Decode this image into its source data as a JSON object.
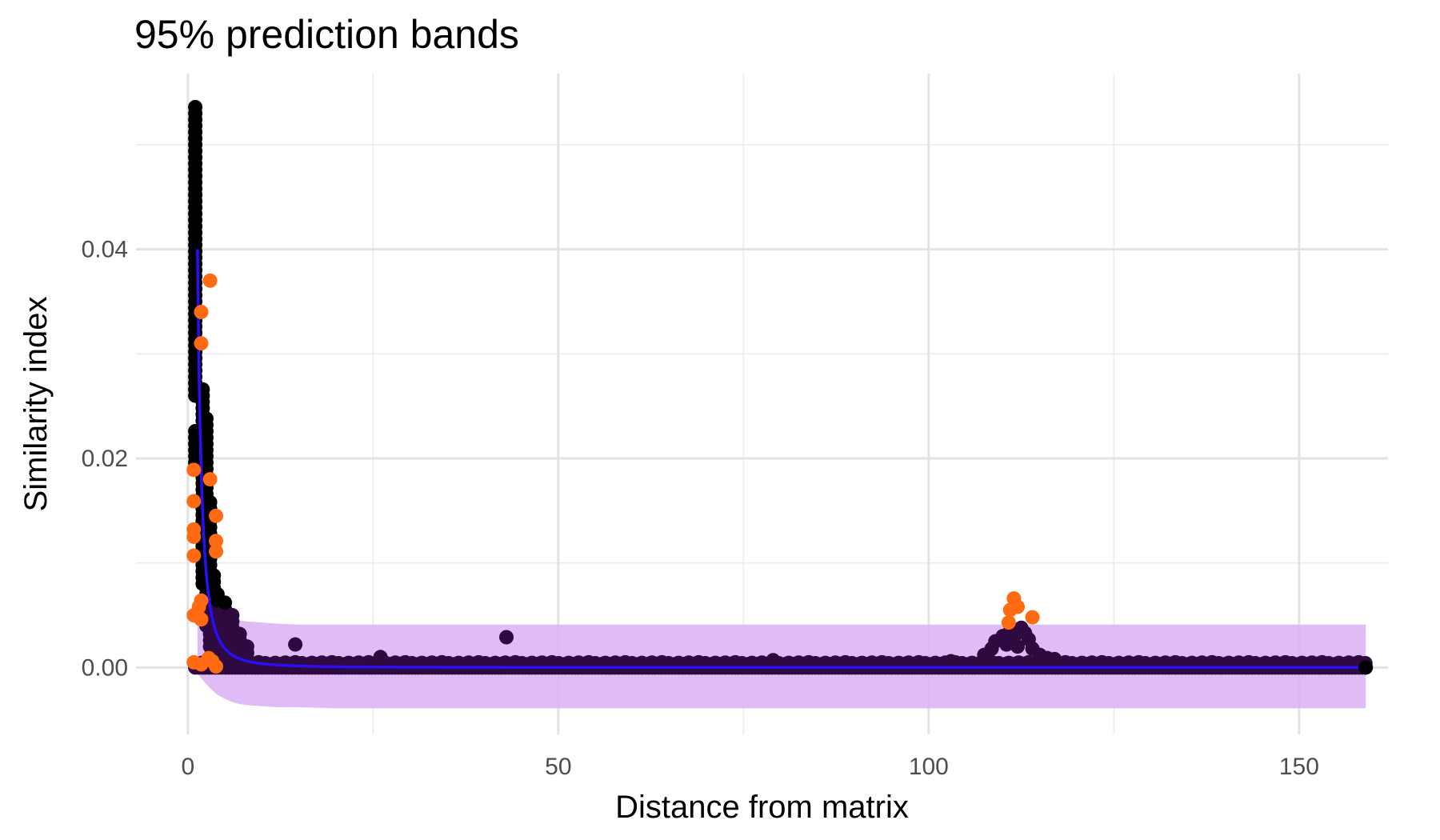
{
  "chart_data": {
    "type": "scatter",
    "title": "95% prediction bands",
    "xlabel": "Distance from matrix",
    "ylabel": "Similarity index",
    "xlim": [
      -7,
      162
    ],
    "ylim": [
      -0.0064,
      0.0568
    ],
    "x_ticks": [
      0,
      50,
      100,
      150
    ],
    "x_tick_labels": [
      "0",
      "50",
      "100",
      "150"
    ],
    "x_minor_ticks": [
      25,
      75,
      125
    ],
    "y_ticks": [
      0.0,
      0.02,
      0.04
    ],
    "y_tick_labels": [
      "0.00",
      "0.02",
      "0.04"
    ],
    "y_minor_ticks": [
      0.01,
      0.03,
      0.05
    ],
    "grid": true,
    "legend": "none",
    "colors": {
      "observed_high": "#000000",
      "observed_low": "#2e0a40",
      "outlier": "#ff6a13",
      "fit_line": "#2a0ff5",
      "band": "#dab0f5"
    },
    "fit": {
      "type": "decay",
      "a": 0.04,
      "x0": 1.3,
      "p": 2.3,
      "xmax": 159
    },
    "band": {
      "x": [
        1.3,
        2,
        3,
        4,
        5,
        6,
        7,
        8,
        10,
        12,
        15,
        20,
        159
      ],
      "lower": [
        -0.0006,
        -0.0012,
        -0.002,
        -0.0026,
        -0.003,
        -0.0033,
        -0.0035,
        -0.0036,
        -0.0037,
        -0.0038,
        -0.0038,
        -0.0039,
        -0.0039
      ],
      "upper": [
        0.0047,
        0.0047,
        0.0047,
        0.0047,
        0.0047,
        0.0046,
        0.0045,
        0.0044,
        0.0043,
        0.0042,
        0.0041,
        0.0041,
        0.0041
      ]
    },
    "series": [
      {
        "role": "observed",
        "clusters": [
          {
            "x": 1,
            "y_from": 0.026,
            "y_to": 0.054,
            "step": 0.0006
          },
          {
            "x": 1,
            "y_from": 0.019,
            "y_to": 0.023,
            "step": 0.0006
          },
          {
            "x": 2,
            "y_from": 0.008,
            "y_to": 0.027,
            "step": 0.0006
          },
          {
            "x": 2.5,
            "y_from": 0.004,
            "y_to": 0.024,
            "step": 0.0006
          },
          {
            "x": 3,
            "y_from": 0.002,
            "y_to": 0.016,
            "step": 0.0006
          },
          {
            "x": 3.5,
            "y_from": 0.001,
            "y_to": 0.009,
            "step": 0.0006
          },
          {
            "x": 4,
            "y_from": 0.001,
            "y_to": 0.007,
            "step": 0.0006
          },
          {
            "x": 5,
            "y_from": 0.0008,
            "y_to": 0.0065,
            "step": 0.0006
          },
          {
            "x": 6,
            "y_from": 0.0008,
            "y_to": 0.005,
            "step": 0.0006
          },
          {
            "x": 7,
            "y_from": 0.0008,
            "y_to": 0.0035,
            "step": 0.0006
          },
          {
            "x": 8,
            "y_from": 0.0008,
            "y_to": 0.0025,
            "step": 0.0006
          }
        ],
        "baseline": {
          "x_from": 1,
          "x_to": 159,
          "step": 0.45,
          "y": 0.0002,
          "spread": 0.0003
        },
        "points": [
          [
            14.5,
            0.0022
          ],
          [
            43,
            0.0029
          ],
          [
            26,
            0.001
          ],
          [
            79,
            0.0007
          ],
          [
            103,
            0.0006
          ],
          [
            107.5,
            0.0012
          ],
          [
            108.5,
            0.0018
          ],
          [
            109,
            0.0025
          ],
          [
            110,
            0.003
          ],
          [
            110.5,
            0.0022
          ],
          [
            111,
            0.0035
          ],
          [
            111.5,
            0.0028
          ],
          [
            112,
            0.002
          ],
          [
            112.5,
            0.0038
          ],
          [
            113,
            0.0033
          ],
          [
            113.5,
            0.0027
          ],
          [
            114,
            0.0018
          ],
          [
            115,
            0.0012
          ],
          [
            116,
            0.0009
          ],
          [
            117,
            0.0008
          ],
          [
            159,
            0.0
          ]
        ]
      },
      {
        "role": "outliers",
        "points": [
          [
            3,
            0.037
          ],
          [
            1.8,
            0.034
          ],
          [
            1.8,
            0.031
          ],
          [
            0.8,
            0.0189
          ],
          [
            3,
            0.018
          ],
          [
            0.8,
            0.0159
          ],
          [
            3.8,
            0.0145
          ],
          [
            0.8,
            0.0132
          ],
          [
            0.8,
            0.0125
          ],
          [
            3.8,
            0.0121
          ],
          [
            3.8,
            0.0111
          ],
          [
            0.8,
            0.0107
          ],
          [
            1.8,
            0.0064
          ],
          [
            1.5,
            0.0058
          ],
          [
            0.8,
            0.005
          ],
          [
            1.5,
            0.0048
          ],
          [
            1.8,
            0.0046
          ],
          [
            0.8,
            0.0005
          ],
          [
            1.8,
            0.0003
          ],
          [
            2.8,
            0.0009
          ],
          [
            3.3,
            0.0006
          ],
          [
            3.8,
            0.0001
          ],
          [
            111.5,
            0.0066
          ],
          [
            111,
            0.0055
          ],
          [
            112,
            0.0058
          ],
          [
            110.8,
            0.0043
          ],
          [
            114,
            0.0048
          ]
        ]
      }
    ]
  }
}
